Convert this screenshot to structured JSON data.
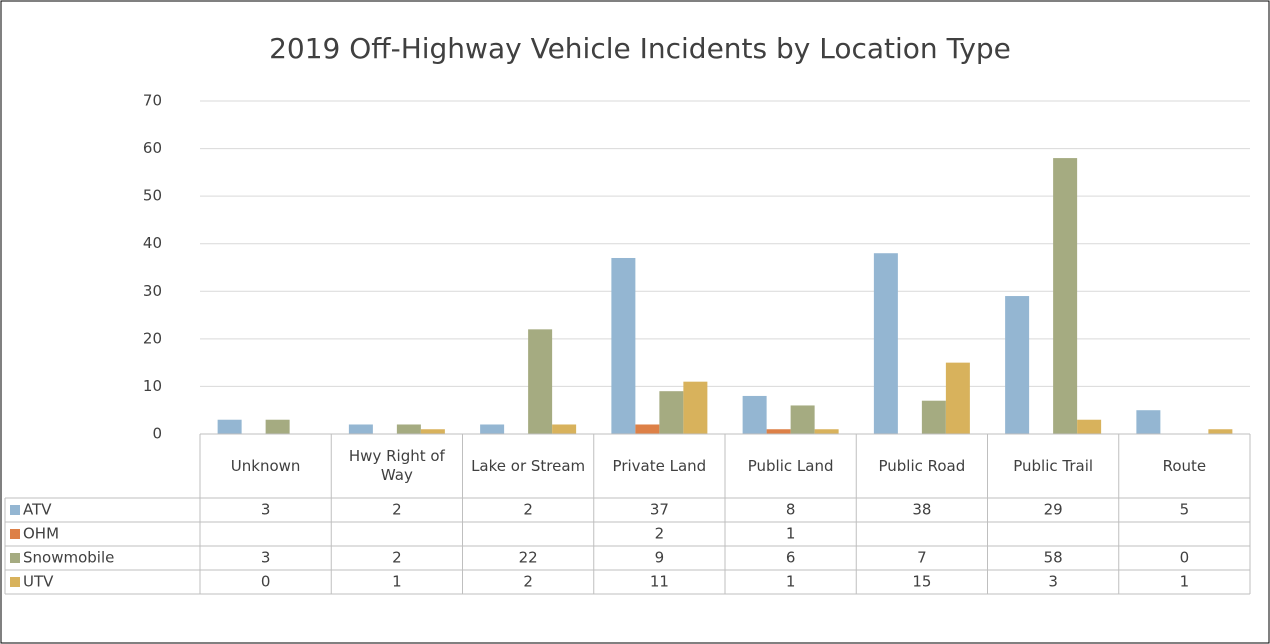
{
  "chart_data": {
    "type": "bar",
    "title": "2019 Off-Highway Vehicle Incidents by Location Type",
    "categories": [
      "Unknown",
      "Hwy Right of Way",
      "Lake or Stream",
      "Private Land",
      "Public Land",
      "Public Road",
      "Public Trail",
      "Route"
    ],
    "series": [
      {
        "name": "ATV",
        "color": "#94b6d2",
        "values": [
          3,
          2,
          2,
          37,
          8,
          38,
          29,
          5
        ]
      },
      {
        "name": "OHM",
        "color": "#dd8047",
        "values": [
          null,
          null,
          null,
          2,
          1,
          null,
          null,
          null
        ]
      },
      {
        "name": "Snowmobile",
        "color": "#a5ab81",
        "values": [
          3,
          2,
          22,
          9,
          6,
          7,
          58,
          0
        ]
      },
      {
        "name": "UTV",
        "color": "#d8b25c",
        "values": [
          0,
          1,
          2,
          11,
          1,
          15,
          3,
          1
        ]
      }
    ],
    "ylim": [
      0,
      70
    ],
    "yticks": [
      0,
      10,
      20,
      30,
      40,
      50,
      60,
      70
    ],
    "grid": true,
    "data_table": true
  }
}
